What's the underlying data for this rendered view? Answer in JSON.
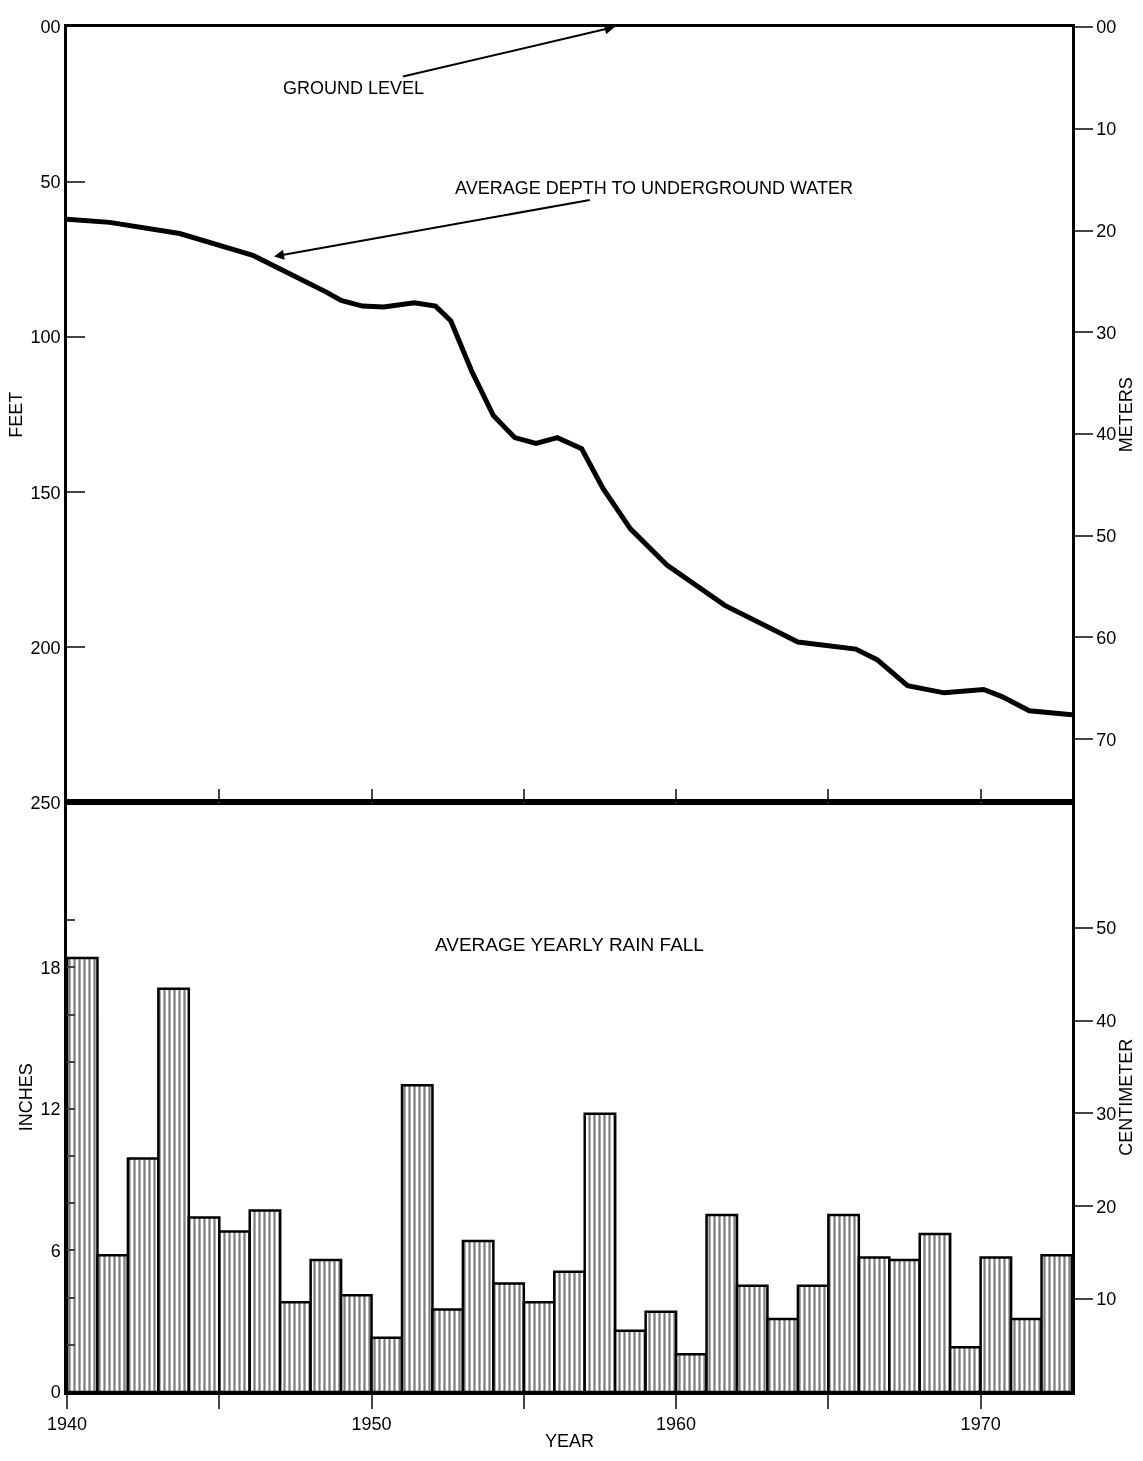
{
  "chart_data": [
    {
      "type": "line",
      "ylabel": "FEET",
      "y2label": "METERS",
      "x": [
        1940.0,
        1941.4,
        1943.7,
        1946.1,
        1948.5,
        1949.0,
        1949.7,
        1950.4,
        1951.4,
        1952.1,
        1952.6,
        1953.3,
        1954.0,
        1954.7,
        1955.4,
        1956.1,
        1956.9,
        1957.6,
        1958.5,
        1959.7,
        1961.6,
        1964.0,
        1965.9,
        1966.6,
        1967.6,
        1968.8,
        1970.1,
        1970.7,
        1971.6,
        1973.0
      ],
      "series": [
        {
          "color": "#000000",
          "values": [
            62,
            63,
            66.6,
            73.6,
            85.4,
            88.2,
            90,
            90.3,
            88.9,
            90,
            94.7,
            111.2,
            125.3,
            132.4,
            134.3,
            132.4,
            136,
            148.8,
            161.8,
            173.5,
            186.5,
            198.3,
            200.6,
            204,
            212.4,
            214.7,
            213.6,
            215.9,
            220.5,
            221.8
          ]
        }
      ],
      "xlim": [
        1940,
        1973
      ],
      "xticks": [
        {
          "value": 1945,
          "label": null
        },
        {
          "value": 1950,
          "label": null
        },
        {
          "value": 1955,
          "label": null
        },
        {
          "value": 1960,
          "label": null
        },
        {
          "value": 1965,
          "label": null
        },
        {
          "value": 1970,
          "label": null
        }
      ],
      "ylim": [
        250,
        0
      ],
      "yticks": [
        {
          "value": 0,
          "label": "00"
        },
        50,
        100,
        150,
        200,
        250
      ],
      "y2lim": [
        76.2,
        0
      ],
      "y2ticks": [
        {
          "value": 0,
          "label": "00"
        },
        10,
        20,
        30,
        40,
        50,
        60,
        70
      ],
      "tick_labels": "y",
      "grid": false,
      "line_style": "solid",
      "marker": "none",
      "annotations": [
        "GROUND LEVEL",
        "AVERAGE DEPTH TO UNDERGROUND WATER"
      ]
    },
    {
      "type": "bar",
      "title": "AVERAGE YEARLY RAIN FALL",
      "xlabel": "YEAR",
      "ylabel": "INCHES",
      "y2label": "CENTIMETER",
      "x": [
        1940.5,
        1941.5,
        1942.5,
        1943.5,
        1944.5,
        1945.5,
        1946.5,
        1947.5,
        1948.5,
        1949.5,
        1950.5,
        1951.5,
        1952.5,
        1953.5,
        1954.5,
        1955.5,
        1956.5,
        1957.5,
        1958.5,
        1959.5,
        1960.5,
        1961.5,
        1962.5,
        1963.5,
        1964.5,
        1965.5,
        1966.5,
        1967.5,
        1968.5,
        1969.5,
        1970.5,
        1971.5,
        1972.5
      ],
      "series": [
        {
          "color": "#000000",
          "values": [
            18.4,
            5.8,
            9.9,
            17.1,
            7.4,
            6.8,
            7.7,
            3.8,
            5.6,
            4.1,
            2.3,
            13.0,
            3.5,
            6.4,
            4.6,
            3.8,
            5.1,
            11.8,
            2.6,
            3.4,
            1.6,
            7.5,
            4.5,
            3.1,
            4.5,
            7.5,
            5.7,
            5.6,
            6.7,
            1.9,
            5.7,
            3.1,
            5.8
          ]
        }
      ],
      "xlim": [
        1940,
        1973
      ],
      "xticks": [
        1940,
        {
          "value": 1945,
          "label": null
        },
        1950,
        {
          "value": 1955,
          "label": null
        },
        1960,
        {
          "value": 1965,
          "label": null
        },
        1970
      ],
      "ylim": [
        0,
        25
      ],
      "yticks": [
        0,
        {
          "value": 2,
          "label": null
        },
        {
          "value": 4,
          "label": null
        },
        6,
        {
          "value": 8,
          "label": null
        },
        {
          "value": 10,
          "label": null
        },
        12,
        {
          "value": 14,
          "label": null
        },
        {
          "value": 16,
          "label": null
        },
        18,
        {
          "value": 20,
          "label": null
        }
      ],
      "y2lim": [
        0,
        63.5
      ],
      "y2ticks": [
        10,
        20,
        30,
        40,
        50
      ],
      "grid": false
    }
  ]
}
